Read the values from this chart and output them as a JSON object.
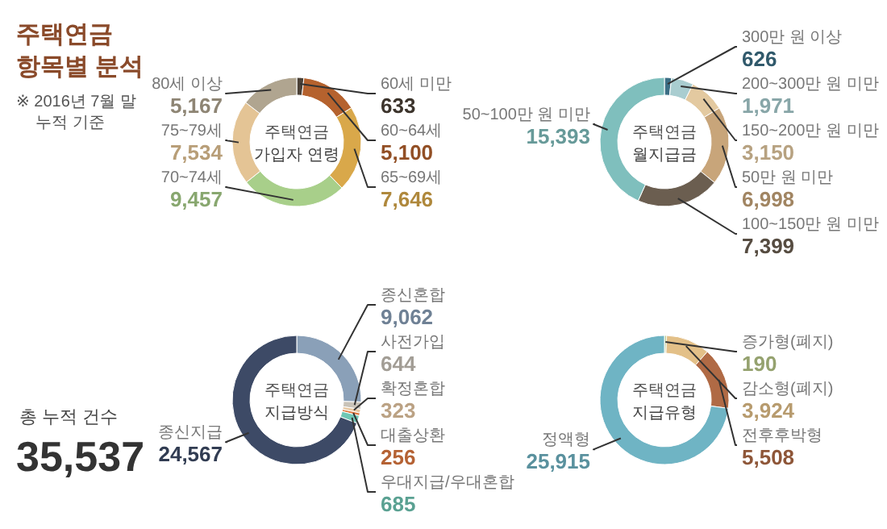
{
  "chart_data": [
    {
      "type": "other",
      "title": "주택연금 항목별 분석",
      "annotations": [
        "※ 2016년 7월 말 누적 기준",
        "총 누적 건수",
        "35,537"
      ]
    },
    {
      "type": "donut",
      "title": "주택연금",
      "subtitle": "가입자 연령",
      "categories": [
        "60세 미만",
        "60~64세",
        "65~69세",
        "70~74세",
        "75~79세",
        "80세 이상"
      ],
      "values": [
        633,
        5100,
        7646,
        9457,
        7534,
        5167
      ],
      "colors": [
        "#4a4036",
        "#b5622e",
        "#d9a84a",
        "#a8cf8a",
        "#e4c495",
        "#b0a590"
      ],
      "value_labels": [
        "633",
        "5,100",
        "7,646",
        "9,457",
        "7,534",
        "5,167"
      ]
    },
    {
      "type": "donut",
      "title": "주택연금",
      "subtitle": "월지급금",
      "categories": [
        "300만 원 이상",
        "200~300만 원 미만",
        "150~200만 원 미만",
        "50만 원 미만",
        "100~150만 원 미만",
        "50~100만 원 미만"
      ],
      "values": [
        626,
        1971,
        3150,
        6998,
        7399,
        15393
      ],
      "colors": [
        "#3c6e85",
        "#a9cdd0",
        "#e3c9a0",
        "#c8a57a",
        "#6b5e50",
        "#7fbfbd"
      ],
      "value_labels": [
        "626",
        "1,971",
        "3,150",
        "6,998",
        "7,399",
        "15,393"
      ]
    },
    {
      "type": "donut",
      "title": "주택연금",
      "subtitle": "지급방식",
      "categories": [
        "종신혼합",
        "사전가입",
        "확정혼합",
        "대출상환",
        "우대지급/우대혼합",
        "종신지급"
      ],
      "values": [
        9062,
        644,
        323,
        256,
        685,
        24567
      ],
      "colors": [
        "#8aa0b8",
        "#c9c3b8",
        "#e8c9a3",
        "#e07a40",
        "#6fc7b5",
        "#3d4a66"
      ],
      "value_labels": [
        "9,062",
        "644",
        "323",
        "256",
        "685",
        "24,567"
      ]
    },
    {
      "type": "donut",
      "title": "주택연금",
      "subtitle": "지급유형",
      "categories": [
        "증가형(폐지)",
        "감소형(폐지)",
        "전후후박형",
        "정액형"
      ],
      "values": [
        190,
        3924,
        5508,
        25915
      ],
      "colors": [
        "#b8c98a",
        "#e3c088",
        "#b06a45",
        "#6fb4c4"
      ],
      "value_labels": [
        "190",
        "3,924",
        "5,508",
        "25,915"
      ]
    }
  ]
}
